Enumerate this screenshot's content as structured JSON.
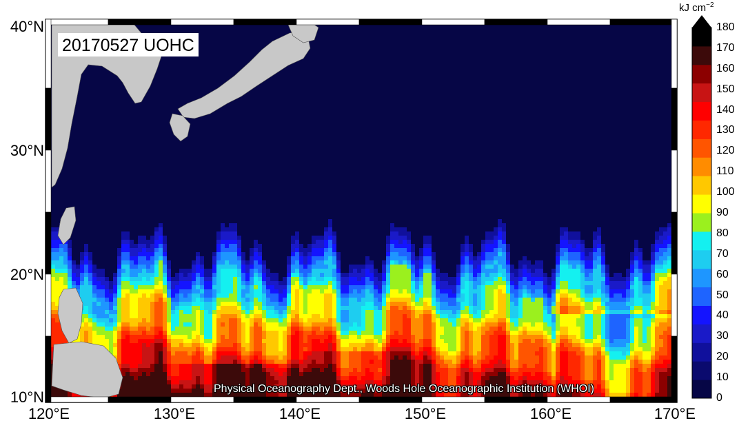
{
  "map": {
    "title": "20170527 UOHC",
    "credit": "Physical Oceanography Dept., Woods Hole Oceanographic Institution (WHOI)",
    "lon_range": [
      120,
      170
    ],
    "lat_range": [
      10,
      40
    ],
    "lat_labels": [
      "40°N",
      "30°N",
      "20°N",
      "10°N"
    ],
    "lon_labels": [
      "120°E",
      "130°E",
      "140°E",
      "150°E",
      "160°E",
      "170°E"
    ],
    "land_color": "#c8c8c8"
  },
  "colorbar": {
    "units": "kJ cm",
    "units_exp": "−2",
    "tick_labels": [
      "180",
      "170",
      "160",
      "150",
      "140",
      "130",
      "120",
      "110",
      "100",
      "90",
      "80",
      "70",
      "60",
      "50",
      "40",
      "30",
      "20",
      "10",
      "0"
    ],
    "colors_low_to_high": [
      "#060646",
      "#0a0a6e",
      "#10109c",
      "#1a1ac8",
      "#1414ff",
      "#1e64ff",
      "#1e96ff",
      "#1ecdf0",
      "#14f0f0",
      "#9bf01e",
      "#ffff00",
      "#ffc800",
      "#ff8c00",
      "#ff5500",
      "#ff2800",
      "#ff0000",
      "#c81414",
      "#8c0000",
      "#3c0a0a",
      "#000000"
    ]
  }
}
